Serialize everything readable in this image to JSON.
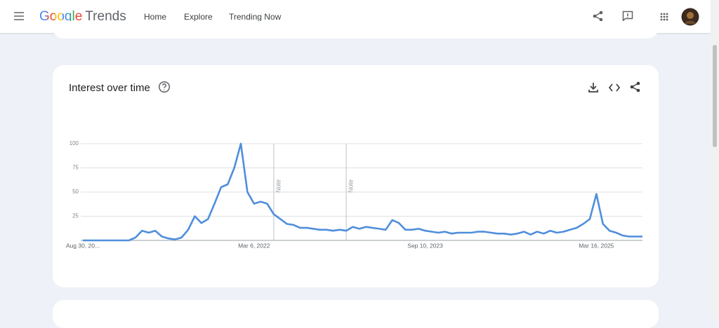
{
  "header": {
    "logo": "Google",
    "product": "Trends",
    "nav": [
      "Home",
      "Explore",
      "Trending Now"
    ],
    "active_nav": 1
  },
  "card": {
    "title": "Interest over time"
  },
  "chart_data": {
    "type": "line",
    "categories": [
      "Aug 30, 20...",
      null,
      null,
      null,
      null,
      null,
      null,
      null,
      null,
      null,
      null,
      null,
      null,
      null,
      null,
      null,
      null,
      null,
      null,
      null,
      null,
      null,
      null,
      null,
      null,
      null,
      "Mar 6, 2022",
      null,
      null,
      null,
      null,
      null,
      null,
      null,
      null,
      null,
      null,
      null,
      null,
      null,
      null,
      null,
      null,
      null,
      null,
      null,
      null,
      null,
      null,
      null,
      null,
      null,
      "Sep 10, 2023",
      null,
      null,
      null,
      null,
      null,
      null,
      null,
      null,
      null,
      null,
      null,
      null,
      null,
      null,
      null,
      null,
      null,
      null,
      null,
      null,
      null,
      null,
      null,
      null,
      null,
      "Mar 16, 2025",
      null,
      null,
      null,
      null,
      null,
      null,
      null
    ],
    "values": [
      0,
      0,
      0,
      0,
      0,
      0,
      0,
      0,
      3,
      10,
      8,
      10,
      4,
      2,
      1,
      3,
      11,
      25,
      18,
      22,
      38,
      55,
      58,
      75,
      100,
      50,
      38,
      40,
      38,
      27,
      22,
      17,
      16,
      13,
      13,
      12,
      11,
      11,
      10,
      11,
      10,
      14,
      12,
      14,
      13,
      12,
      11,
      21,
      18,
      11,
      11,
      12,
      10,
      9,
      8,
      9,
      7,
      8,
      8,
      8,
      9,
      9,
      8,
      7,
      7,
      6,
      7,
      9,
      6,
      9,
      7,
      10,
      8,
      9,
      11,
      13,
      17,
      22,
      48,
      17,
      10,
      8,
      5,
      4,
      4,
      4
    ],
    "color": "#4f8edc",
    "ylim": [
      0,
      100
    ],
    "yticks": [
      25,
      50,
      75,
      100
    ],
    "grid": true,
    "notes": [
      {
        "index": 29,
        "label": "Note"
      },
      {
        "index": 40,
        "label": "Note"
      }
    ]
  }
}
